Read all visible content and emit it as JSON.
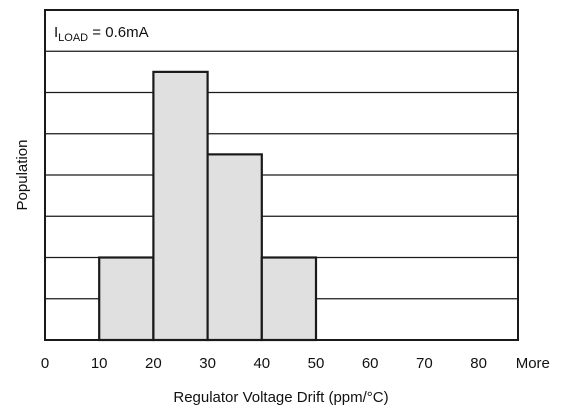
{
  "chart_data": {
    "type": "bar",
    "title": "",
    "xlabel": "Regulator Voltage Drift (ppm/°C)",
    "ylabel": "Population",
    "x_ticks": [
      "0",
      "10",
      "20",
      "30",
      "40",
      "50",
      "60",
      "70",
      "80",
      "More"
    ],
    "bins": [
      {
        "from": 10,
        "to": 20,
        "value": 2
      },
      {
        "from": 20,
        "to": 30,
        "value": 6.5
      },
      {
        "from": 30,
        "to": 40,
        "value": 4.5
      },
      {
        "from": 40,
        "to": 50,
        "value": 2
      }
    ],
    "ylim": [
      0,
      8
    ],
    "y_gridlines": [
      1,
      2,
      3,
      4,
      5,
      6,
      7
    ],
    "y_tick_labels_shown": false,
    "grid": true,
    "annotation": {
      "base": "I",
      "subscript": "LOAD",
      "rest": " = 0.6mA"
    },
    "colors": {
      "bar_fill": "#e0e0e0",
      "bar_stroke": "#1a1a1a",
      "grid": "#1a1a1a",
      "frame": "#1a1a1a"
    }
  }
}
